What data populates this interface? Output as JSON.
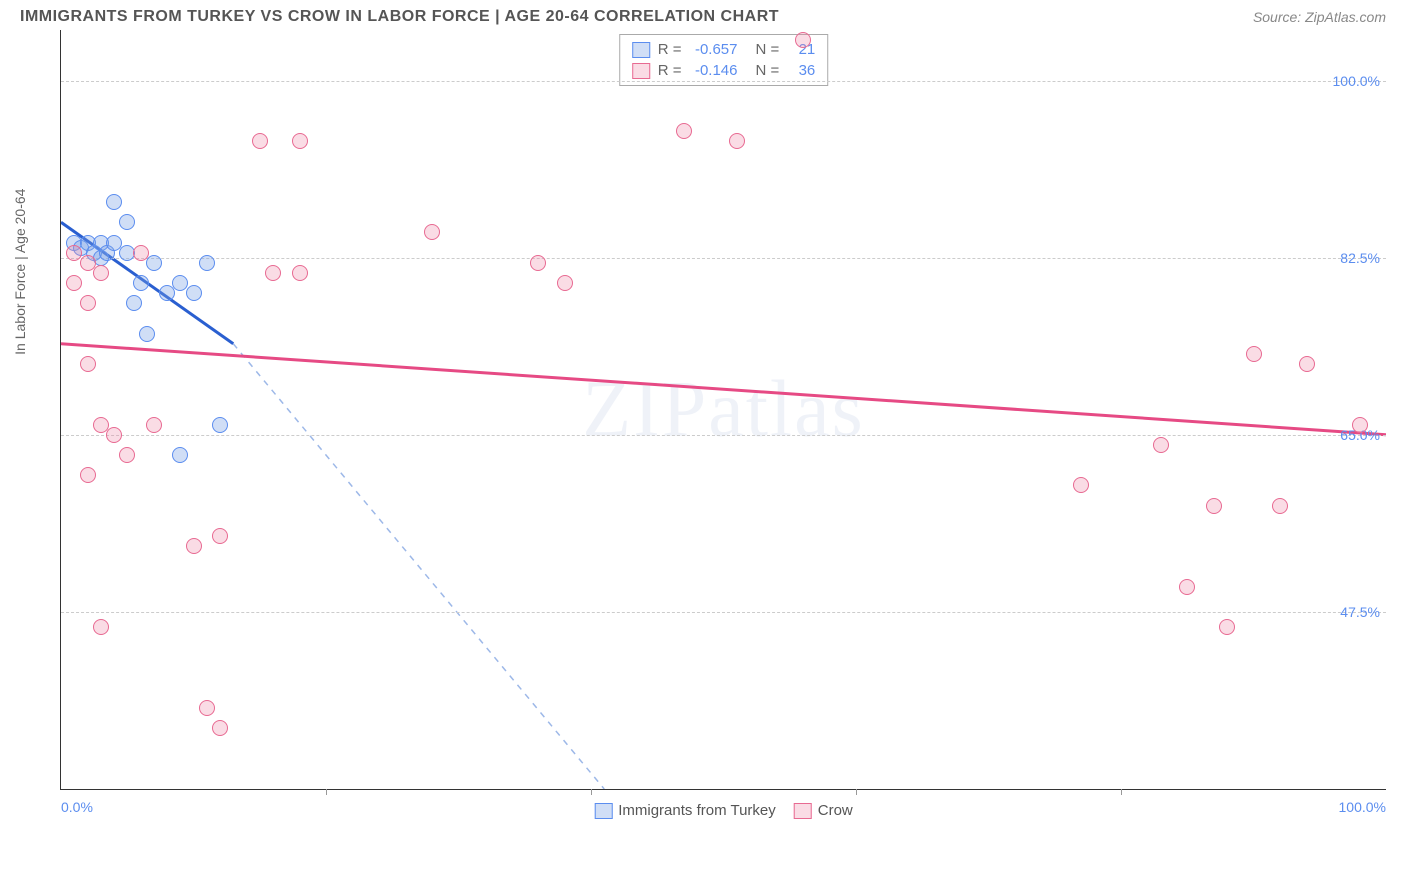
{
  "header": {
    "title": "IMMIGRANTS FROM TURKEY VS CROW IN LABOR FORCE | AGE 20-64 CORRELATION CHART",
    "source": "Source: ZipAtlas.com"
  },
  "chart": {
    "type": "scatter",
    "yaxis_label": "In Labor Force | Age 20-64",
    "watermark": "ZIPatlas",
    "background_color": "#ffffff",
    "grid_color": "#cccccc",
    "axis_color": "#333333",
    "tick_label_color": "#5b8def",
    "xlim": [
      0,
      100
    ],
    "ylim": [
      30,
      105
    ],
    "yticks": [
      {
        "value": 47.5,
        "label": "47.5%"
      },
      {
        "value": 65.0,
        "label": "65.0%"
      },
      {
        "value": 82.5,
        "label": "82.5%"
      },
      {
        "value": 100.0,
        "label": "100.0%"
      }
    ],
    "xticks_major": [
      20,
      40,
      60,
      80
    ],
    "xlabels": [
      {
        "value": 0,
        "label": "0.0%",
        "align": "left"
      },
      {
        "value": 100,
        "label": "100.0%",
        "align": "right"
      }
    ],
    "marker_radius": 8,
    "series": [
      {
        "name": "Immigrants from Turkey",
        "fill_color": "rgba(120,160,230,0.35)",
        "stroke_color": "#5b8def",
        "trend_color": "#2a5fd0",
        "trend_dash_color": "#9db8e8",
        "R": "-0.657",
        "N": "21",
        "trend_solid": {
          "x1": 0,
          "y1": 86,
          "x2": 13,
          "y2": 74
        },
        "trend_dash": {
          "x1": 13,
          "y1": 74,
          "x2": 41,
          "y2": 30
        },
        "points": [
          {
            "x": 1,
            "y": 84
          },
          {
            "x": 1.5,
            "y": 83.5
          },
          {
            "x": 2,
            "y": 84
          },
          {
            "x": 2.5,
            "y": 83
          },
          {
            "x": 3,
            "y": 82.5
          },
          {
            "x": 3,
            "y": 84
          },
          {
            "x": 3.5,
            "y": 83
          },
          {
            "x": 4,
            "y": 84
          },
          {
            "x": 4,
            "y": 88
          },
          {
            "x": 5,
            "y": 83
          },
          {
            "x": 5,
            "y": 86
          },
          {
            "x": 5.5,
            "y": 78
          },
          {
            "x": 6,
            "y": 80
          },
          {
            "x": 6.5,
            "y": 75
          },
          {
            "x": 7,
            "y": 82
          },
          {
            "x": 8,
            "y": 79
          },
          {
            "x": 9,
            "y": 80
          },
          {
            "x": 10,
            "y": 79
          },
          {
            "x": 11,
            "y": 82
          },
          {
            "x": 12,
            "y": 66
          },
          {
            "x": 9,
            "y": 63
          }
        ]
      },
      {
        "name": "Crow",
        "fill_color": "rgba(240,140,170,0.30)",
        "stroke_color": "#e86a92",
        "trend_color": "#e64a84",
        "R": "-0.146",
        "N": "36",
        "trend_solid": {
          "x1": 0,
          "y1": 74,
          "x2": 100,
          "y2": 65
        },
        "points": [
          {
            "x": 1,
            "y": 83
          },
          {
            "x": 1,
            "y": 80
          },
          {
            "x": 2,
            "y": 82
          },
          {
            "x": 2,
            "y": 78
          },
          {
            "x": 3,
            "y": 81
          },
          {
            "x": 2,
            "y": 72
          },
          {
            "x": 3,
            "y": 66
          },
          {
            "x": 4,
            "y": 65
          },
          {
            "x": 5,
            "y": 63
          },
          {
            "x": 2,
            "y": 61
          },
          {
            "x": 3,
            "y": 46
          },
          {
            "x": 7,
            "y": 66
          },
          {
            "x": 10,
            "y": 54
          },
          {
            "x": 11,
            "y": 38
          },
          {
            "x": 12,
            "y": 55
          },
          {
            "x": 12,
            "y": 36
          },
          {
            "x": 15,
            "y": 94
          },
          {
            "x": 16,
            "y": 81
          },
          {
            "x": 18,
            "y": 94
          },
          {
            "x": 18,
            "y": 81
          },
          {
            "x": 28,
            "y": 85
          },
          {
            "x": 36,
            "y": 82
          },
          {
            "x": 38,
            "y": 80
          },
          {
            "x": 47,
            "y": 95
          },
          {
            "x": 51,
            "y": 94
          },
          {
            "x": 56,
            "y": 104
          },
          {
            "x": 77,
            "y": 60
          },
          {
            "x": 83,
            "y": 64
          },
          {
            "x": 85,
            "y": 50
          },
          {
            "x": 87,
            "y": 58
          },
          {
            "x": 88,
            "y": 46
          },
          {
            "x": 90,
            "y": 73
          },
          {
            "x": 92,
            "y": 58
          },
          {
            "x": 94,
            "y": 72
          },
          {
            "x": 98,
            "y": 66
          },
          {
            "x": 6,
            "y": 83
          }
        ]
      }
    ],
    "legend_top": {
      "rows": [
        {
          "series_idx": 0,
          "r_label": "R =",
          "r_val": "-0.657",
          "n_label": "N =",
          "n_val": "21"
        },
        {
          "series_idx": 1,
          "r_label": "R =",
          "r_val": "-0.146",
          "n_label": "N =",
          "n_val": "36"
        }
      ]
    },
    "legend_bottom": [
      {
        "series_idx": 0,
        "label": "Immigrants from Turkey"
      },
      {
        "series_idx": 1,
        "label": "Crow"
      }
    ]
  }
}
